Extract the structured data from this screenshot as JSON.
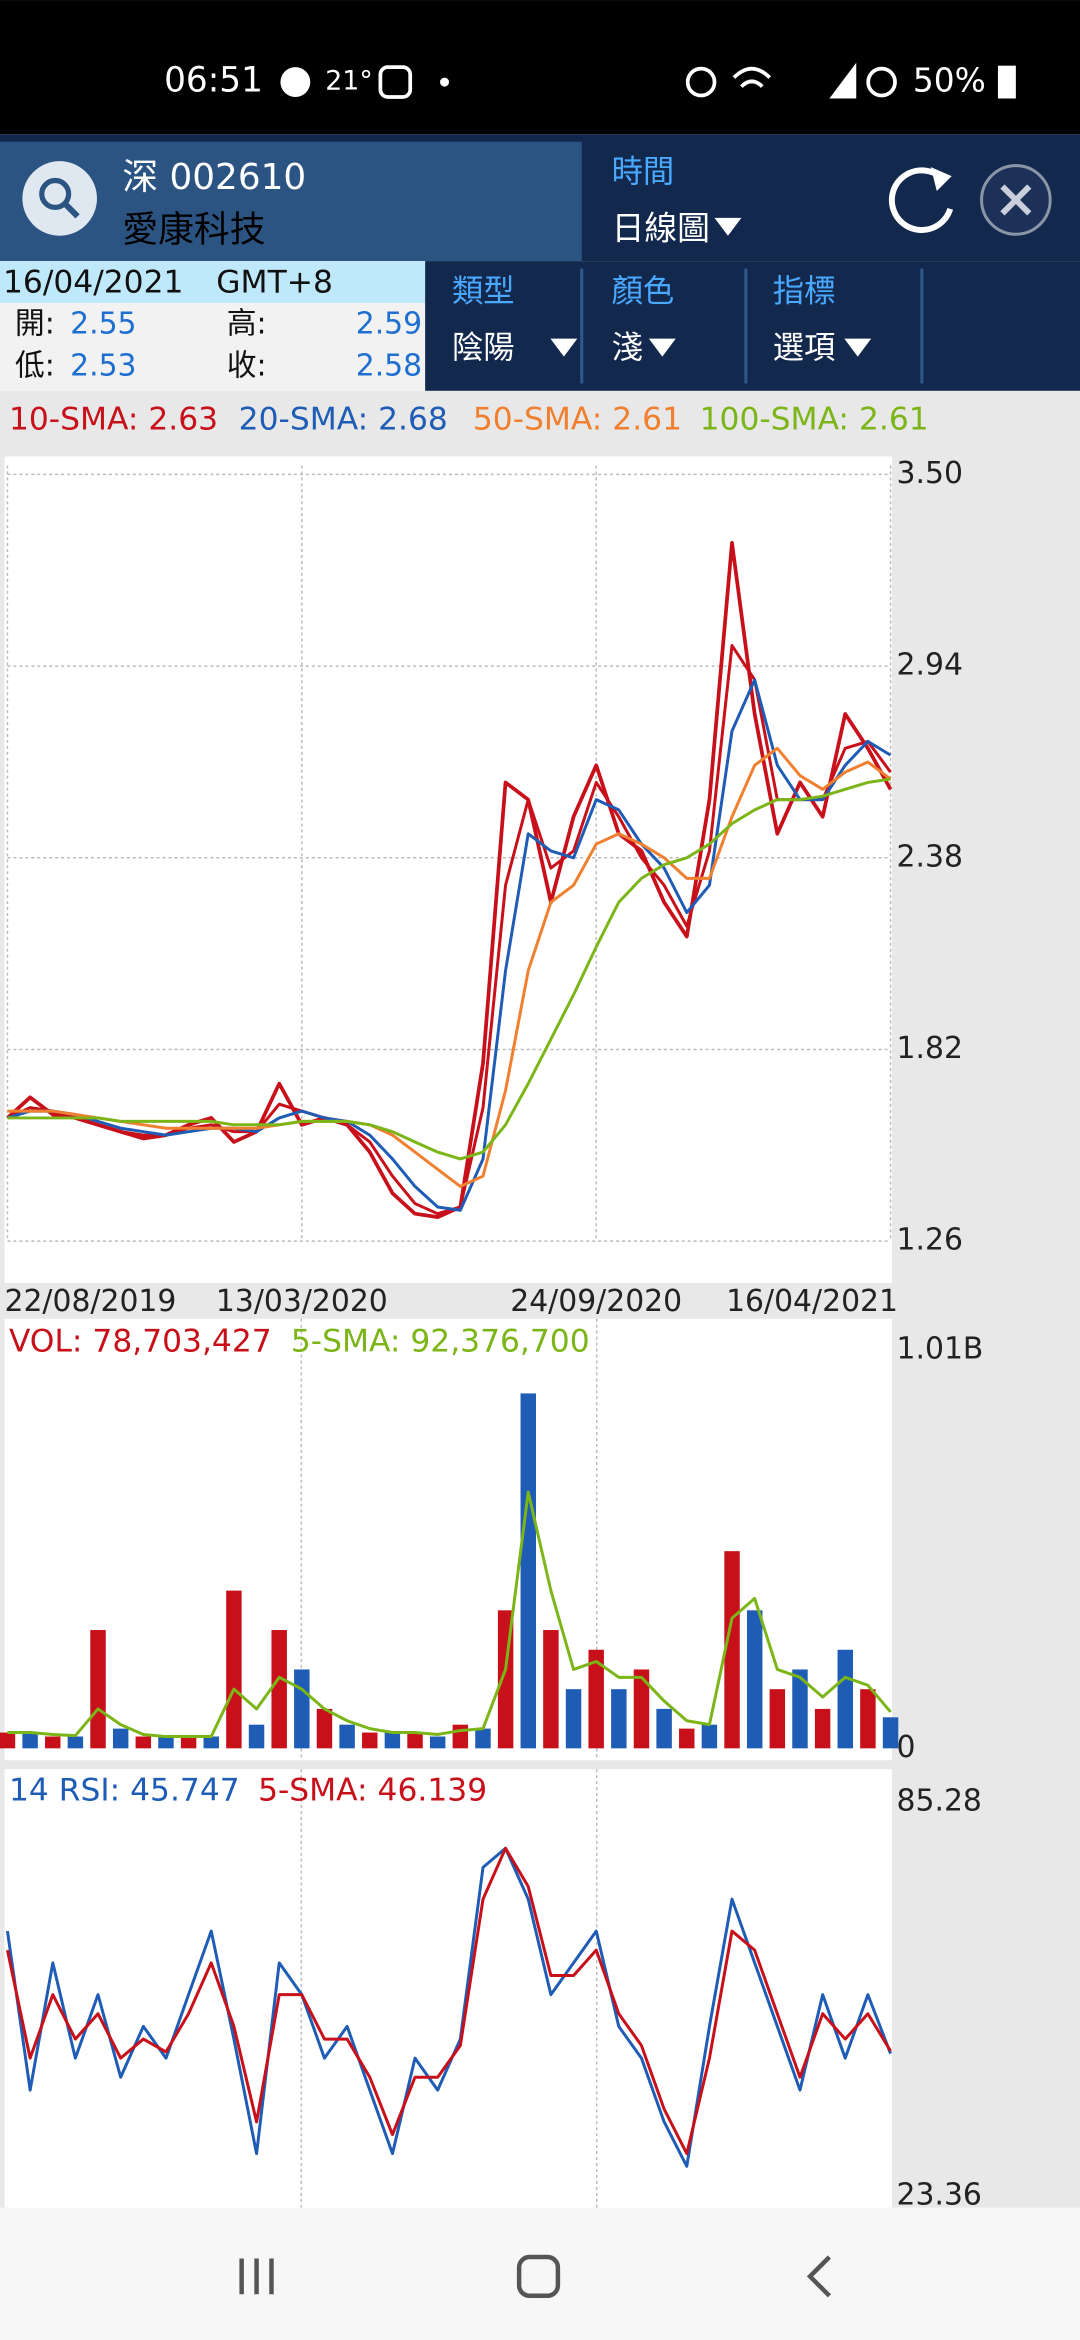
{
  "status_bar": {
    "time": "06:51",
    "temperature": "21°",
    "battery": "50%"
  },
  "header": {
    "market": "深 002610",
    "name": "愛康科技",
    "time_label": "時間",
    "time_value": "日線圖"
  },
  "quote": {
    "date": "16/04/2021",
    "timezone": "GMT+8",
    "open_label": "開:",
    "open": 2.55,
    "high_label": "高:",
    "high": 2.59,
    "low_label": "低:",
    "low": 2.53,
    "close_label": "收:",
    "close": 2.58
  },
  "tabs": [
    {
      "label": "類型",
      "value": "陰陽"
    },
    {
      "label": "顏色",
      "value": "淺"
    },
    {
      "label": "指標",
      "value": "選項"
    }
  ],
  "chart_data": [
    {
      "type": "line",
      "grid": true,
      "xlim": [
        0,
        39
      ],
      "ylim": [
        1.26,
        3.5
      ],
      "yticks": [
        1.26,
        1.82,
        2.38,
        2.94,
        {
          "value": 3.5,
          "label": "3.50"
        }
      ],
      "xticks": [
        {
          "value": 0,
          "label": "22/08/2019"
        },
        {
          "value": 13,
          "label": "13/03/2020"
        },
        {
          "value": 26,
          "label": "24/09/2020"
        },
        {
          "value": 39,
          "label": "16/04/2021"
        }
      ],
      "series": [
        {
          "color": "#c8101a",
          "values": [
            1.62,
            1.68,
            1.63,
            1.62,
            1.6,
            1.58,
            1.56,
            1.57,
            1.6,
            1.62,
            1.55,
            1.58,
            1.72,
            1.6,
            1.62,
            1.6,
            1.52,
            1.4,
            1.34,
            1.33,
            1.36,
            1.78,
            2.6,
            2.55,
            2.25,
            2.5,
            2.65,
            2.45,
            2.4,
            2.25,
            2.15,
            2.55,
            3.3,
            2.8,
            2.45,
            2.6,
            2.5,
            2.8,
            2.7,
            2.58
          ]
        },
        {
          "name": "10-SMA: 2.63",
          "color": "#c8101a",
          "values": [
            1.62,
            1.65,
            1.64,
            1.62,
            1.6,
            1.58,
            1.57,
            1.57,
            1.59,
            1.6,
            1.58,
            1.58,
            1.66,
            1.64,
            1.62,
            1.6,
            1.55,
            1.45,
            1.37,
            1.34,
            1.36,
            1.65,
            2.3,
            2.55,
            2.35,
            2.4,
            2.6,
            2.5,
            2.38,
            2.3,
            2.18,
            2.4,
            3.0,
            2.9,
            2.55,
            2.55,
            2.55,
            2.7,
            2.72,
            2.63
          ]
        },
        {
          "name": "20-SMA: 2.68",
          "color": "#1f5cb5",
          "values": [
            1.62,
            1.64,
            1.64,
            1.63,
            1.61,
            1.59,
            1.58,
            1.57,
            1.58,
            1.59,
            1.59,
            1.58,
            1.62,
            1.64,
            1.62,
            1.61,
            1.57,
            1.5,
            1.42,
            1.36,
            1.35,
            1.5,
            2.05,
            2.45,
            2.4,
            2.38,
            2.55,
            2.52,
            2.42,
            2.35,
            2.22,
            2.3,
            2.75,
            2.9,
            2.65,
            2.55,
            2.55,
            2.65,
            2.72,
            2.68
          ]
        },
        {
          "name": "50-SMA: 2.61",
          "color": "#f08030",
          "values": [
            1.64,
            1.64,
            1.64,
            1.63,
            1.62,
            1.61,
            1.6,
            1.59,
            1.59,
            1.59,
            1.59,
            1.59,
            1.6,
            1.61,
            1.61,
            1.61,
            1.6,
            1.57,
            1.52,
            1.47,
            1.42,
            1.45,
            1.7,
            2.05,
            2.25,
            2.3,
            2.42,
            2.45,
            2.42,
            2.38,
            2.32,
            2.32,
            2.5,
            2.65,
            2.7,
            2.62,
            2.58,
            2.63,
            2.66,
            2.61
          ]
        },
        {
          "name": "100-SMA: 2.61",
          "color": "#7cb518",
          "values": [
            1.62,
            1.62,
            1.62,
            1.62,
            1.62,
            1.61,
            1.61,
            1.61,
            1.61,
            1.61,
            1.6,
            1.6,
            1.6,
            1.61,
            1.61,
            1.61,
            1.6,
            1.58,
            1.55,
            1.52,
            1.5,
            1.52,
            1.6,
            1.72,
            1.85,
            1.98,
            2.12,
            2.25,
            2.32,
            2.36,
            2.38,
            2.42,
            2.48,
            2.52,
            2.55,
            2.55,
            2.56,
            2.58,
            2.6,
            2.61
          ]
        }
      ]
    },
    {
      "type": "bar",
      "xlim": [
        0,
        39
      ],
      "ylim": [
        0,
        1010000000
      ],
      "yticks": [
        0,
        {
          "value": 1010000000,
          "label": "1.01B"
        }
      ],
      "series": [
        {
          "name": "VOL: 78,703,427",
          "colors": [
            "#c8101a",
            "#1f5cb5"
          ],
          "values": [
            40000000,
            40000000,
            30000000,
            30000000,
            300000000,
            50000000,
            30000000,
            30000000,
            30000000,
            30000000,
            400000000,
            60000000,
            300000000,
            200000000,
            100000000,
            60000000,
            40000000,
            40000000,
            40000000,
            30000000,
            60000000,
            50000000,
            350000000,
            900000000,
            300000000,
            150000000,
            250000000,
            150000000,
            200000000,
            100000000,
            50000000,
            60000000,
            500000000,
            350000000,
            150000000,
            200000000,
            100000000,
            250000000,
            150000000,
            78703427
          ]
        },
        {
          "name": "5-SMA: 92,376,700",
          "color": "#7cb518",
          "values": [
            40000000,
            40000000,
            35000000,
            32000000,
            100000000,
            60000000,
            35000000,
            30000000,
            30000000,
            30000000,
            150000000,
            100000000,
            180000000,
            150000000,
            100000000,
            70000000,
            50000000,
            40000000,
            40000000,
            35000000,
            45000000,
            50000000,
            200000000,
            650000000,
            400000000,
            200000000,
            220000000,
            180000000,
            180000000,
            120000000,
            70000000,
            60000000,
            330000000,
            380000000,
            200000000,
            180000000,
            130000000,
            180000000,
            160000000,
            92376700
          ]
        }
      ]
    },
    {
      "type": "line",
      "xlim": [
        0,
        39
      ],
      "ylim": [
        23.36,
        85.28
      ],
      "yticks": [
        23.36,
        85.28
      ],
      "series": [
        {
          "name": "14 RSI: 45.747",
          "color": "#1f5cb5",
          "values": [
            65,
            40,
            60,
            45,
            55,
            42,
            50,
            45,
            55,
            65,
            48,
            30,
            60,
            55,
            45,
            50,
            40,
            30,
            45,
            40,
            48,
            75,
            78,
            70,
            55,
            60,
            65,
            50,
            45,
            35,
            28,
            50,
            70,
            60,
            50,
            40,
            55,
            45,
            55,
            45.747
          ]
        },
        {
          "name": "5-SMA: 46.139",
          "color": "#c8101a",
          "values": [
            62,
            45,
            55,
            48,
            52,
            45,
            48,
            46,
            52,
            60,
            50,
            35,
            55,
            55,
            48,
            48,
            42,
            33,
            42,
            42,
            47,
            70,
            78,
            72,
            58,
            58,
            62,
            52,
            47,
            37,
            30,
            45,
            65,
            62,
            52,
            42,
            52,
            48,
            52,
            46.139
          ]
        }
      ]
    }
  ]
}
